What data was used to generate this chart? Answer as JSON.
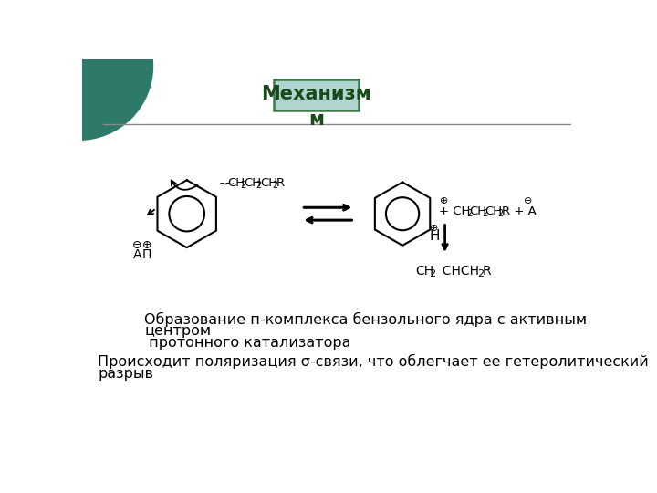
{
  "title_box_text": "Механизм",
  "title_sub_text": "м",
  "title_box_bg": "#b0d4d0",
  "title_box_edge": "#3a7a4a",
  "title_text_color": "#1a4a1a",
  "bg_color": "#ffffff",
  "left_circle_color": "#2d7a6a",
  "text1_line1": "Образование п-комплекса бензольного ядра с активным",
  "text1_line2": "центром",
  "text1_line3": " протонного катализатора",
  "text2_line1": "Происходит поляризация σ-связи, что облегчает ее гетеролитический",
  "text2_line2": "разрыв",
  "font_size_title": 15,
  "font_size_body": 11.5,
  "font_size_formula": 10
}
